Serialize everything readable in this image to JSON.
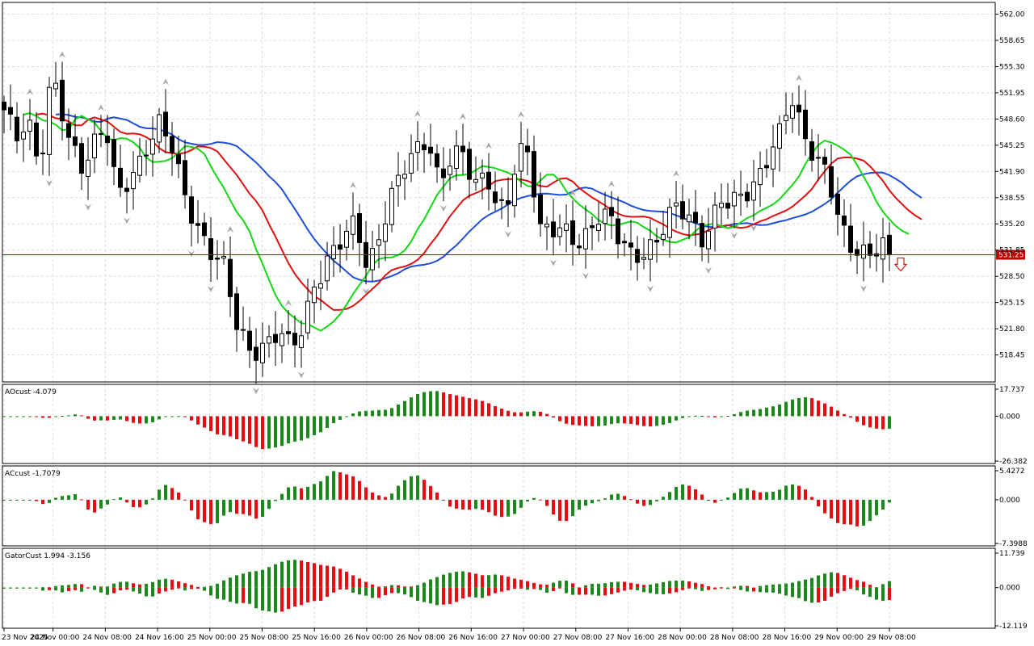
{
  "colors": {
    "background": "#ffffff",
    "frame": "#000000",
    "grid": "#dcdcdc",
    "bull_candle": "#ffffff",
    "bear_candle": "#000000",
    "jaw": "#1f4fd8",
    "teeth": "#e01010",
    "lips": "#13d813",
    "current_price_line": "#c00000",
    "current_price_badge": "#c00000",
    "fractal": "#a8a8a8",
    "hist_up": "#1a8a1a",
    "hist_down": "#e01010",
    "sell_arrow": "#e01010"
  },
  "chart_data": [
    {
      "type": "candlestick",
      "panel": "main",
      "title": "",
      "ylim": [
        515.0,
        563.5
      ],
      "y_ticks": [
        "562.00",
        "558.65",
        "555.30",
        "551.95",
        "548.60",
        "545.25",
        "541.90",
        "538.55",
        "535.20",
        "531.85",
        "528.50",
        "525.15",
        "521.80",
        "518.45"
      ],
      "current_price": 531.25,
      "current_price_label": "531.25",
      "grid": true,
      "overlays": [
        {
          "name": "Alligator Jaw",
          "color_key": "jaw"
        },
        {
          "name": "Alligator Teeth",
          "color_key": "teeth"
        },
        {
          "name": "Alligator Lips",
          "color_key": "lips"
        }
      ],
      "markers": [
        "Fractals",
        "sell-arrow"
      ]
    },
    {
      "type": "bar",
      "panel": "ao",
      "label": "AOcust -4.079",
      "ylim": [
        -26.382,
        17.737
      ],
      "y_ticks": [
        "17.737",
        "0.000",
        "-26.382"
      ]
    },
    {
      "type": "bar",
      "panel": "ac",
      "label": "ACcust -1.7079",
      "ylim": [
        -7.3988,
        5.4272
      ],
      "y_ticks": [
        "5.4272",
        "0.000",
        "-7.3988"
      ]
    },
    {
      "type": "bar",
      "panel": "gator",
      "label": "GatorCust 1.994 -3.156",
      "ylim": [
        -12.119,
        11.739
      ],
      "y_ticks": [
        "11.739",
        "0.000",
        "-12.119"
      ]
    }
  ],
  "time_axis": {
    "labels": [
      "23 Nov 2025",
      "24 Nov 00:00",
      "24 Nov 08:00",
      "24 Nov 16:00",
      "25 Nov 00:00",
      "25 Nov 08:00",
      "25 Nov 16:00",
      "26 Nov 00:00",
      "26 Nov 08:00",
      "26 Nov 16:00",
      "27 Nov 00:00",
      "27 Nov 08:00",
      "27 Nov 16:00",
      "28 Nov 00:00",
      "28 Nov 08:00",
      "28 Nov 16:00",
      "29 Nov 00:00",
      "29 Nov 08:00"
    ]
  }
}
